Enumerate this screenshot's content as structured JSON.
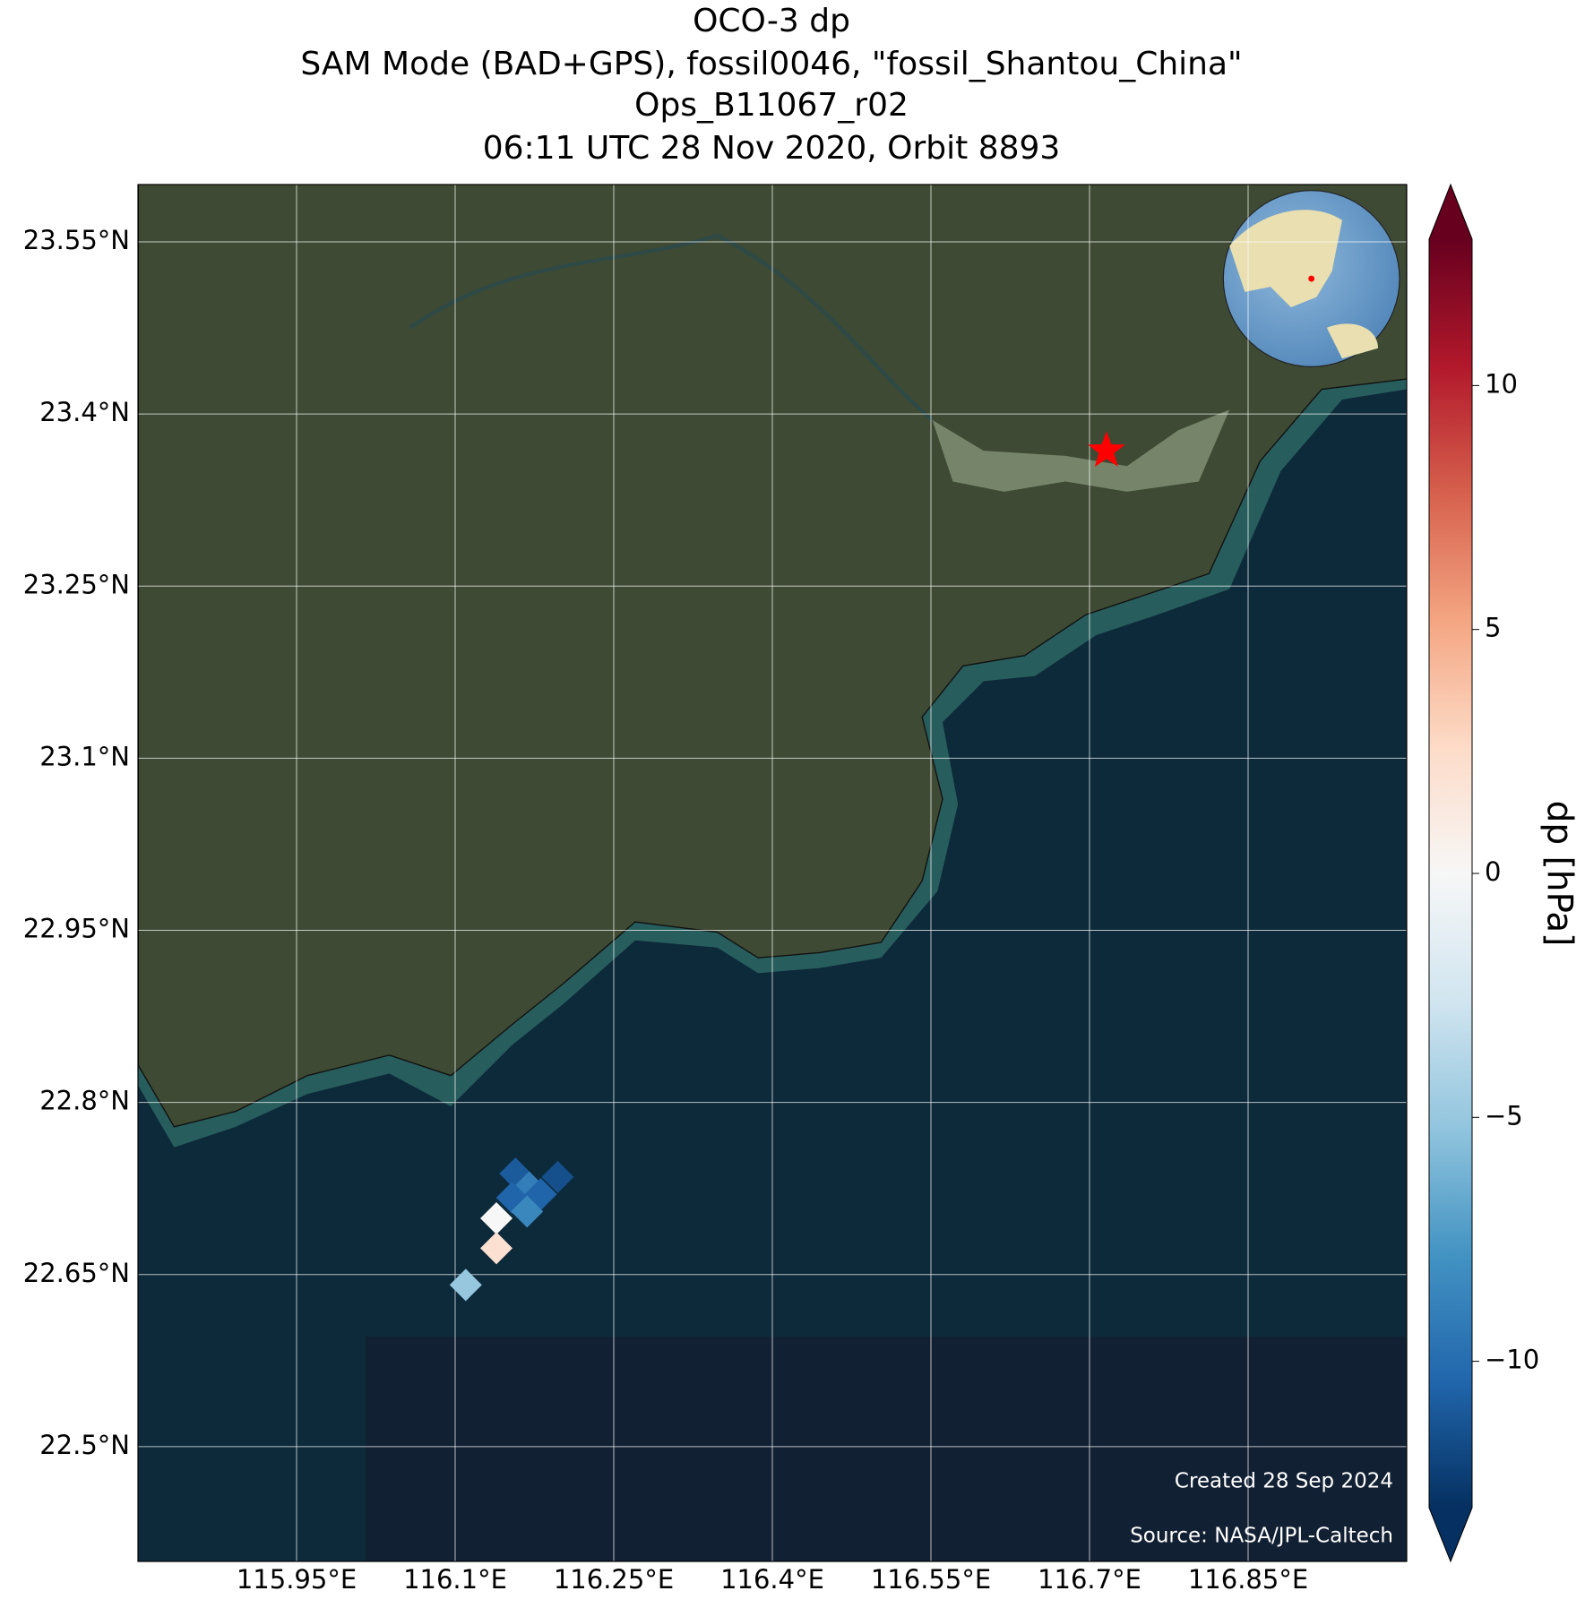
{
  "chart_data": {
    "type": "map",
    "title": [
      "OCO-3 dp",
      "SAM Mode (BAD+GPS), fossil0046, \"fossil_Shantou_China\"",
      "Ops_B11067_r02",
      "06:11 UTC 28 Nov 2020, Orbit 8893"
    ],
    "xlim": [
      115.8,
      117.0
    ],
    "ylim": [
      22.4,
      23.6
    ],
    "xticks": [
      {
        "value": 115.95,
        "label": "115.95°E"
      },
      {
        "value": 116.1,
        "label": "116.1°E"
      },
      {
        "value": 116.25,
        "label": "116.25°E"
      },
      {
        "value": 116.4,
        "label": "116.4°E"
      },
      {
        "value": 116.55,
        "label": "116.55°E"
      },
      {
        "value": 116.7,
        "label": "116.7°E"
      },
      {
        "value": 116.85,
        "label": "116.85°E"
      }
    ],
    "yticks": [
      {
        "value": 22.5,
        "label": "22.5°N"
      },
      {
        "value": 22.65,
        "label": "22.65°N"
      },
      {
        "value": 22.8,
        "label": "22.8°N"
      },
      {
        "value": 22.95,
        "label": "22.95°N"
      },
      {
        "value": 23.1,
        "label": "23.1°N"
      },
      {
        "value": 23.25,
        "label": "23.25°N"
      },
      {
        "value": 23.4,
        "label": "23.4°N"
      },
      {
        "value": 23.55,
        "label": "23.55°N"
      }
    ],
    "grid": true,
    "soundings": {
      "lon": [
        116.157,
        116.17,
        116.197,
        116.154,
        116.181,
        116.139,
        116.168,
        116.139,
        116.11
      ],
      "lat": [
        22.738,
        22.726,
        22.735,
        22.717,
        22.72,
        22.699,
        22.705,
        22.673,
        22.641
      ],
      "dp": [
        -11,
        -9,
        -11.5,
        -10.5,
        -10.5,
        0,
        -8.5,
        2,
        -5
      ]
    },
    "target": {
      "lon": 116.716,
      "lat": 23.368,
      "color": "#ff0000"
    },
    "colorbar": {
      "label": "dp [hPa]",
      "vlim": [
        -13,
        13
      ],
      "ticks": [
        {
          "value": -10,
          "label": "−10"
        },
        {
          "value": -5,
          "label": "−5"
        },
        0,
        5,
        10
      ],
      "colormap": [
        "#053061",
        "#2166ac",
        "#4393c3",
        "#92c5de",
        "#d1e5f0",
        "#f7f7f7",
        "#fddbc7",
        "#f4a582",
        "#d6604d",
        "#b2182b",
        "#67001f"
      ]
    },
    "credits": [
      "Created 28 Sep 2024",
      "Source: NASA/JPL-Caltech"
    ]
  }
}
